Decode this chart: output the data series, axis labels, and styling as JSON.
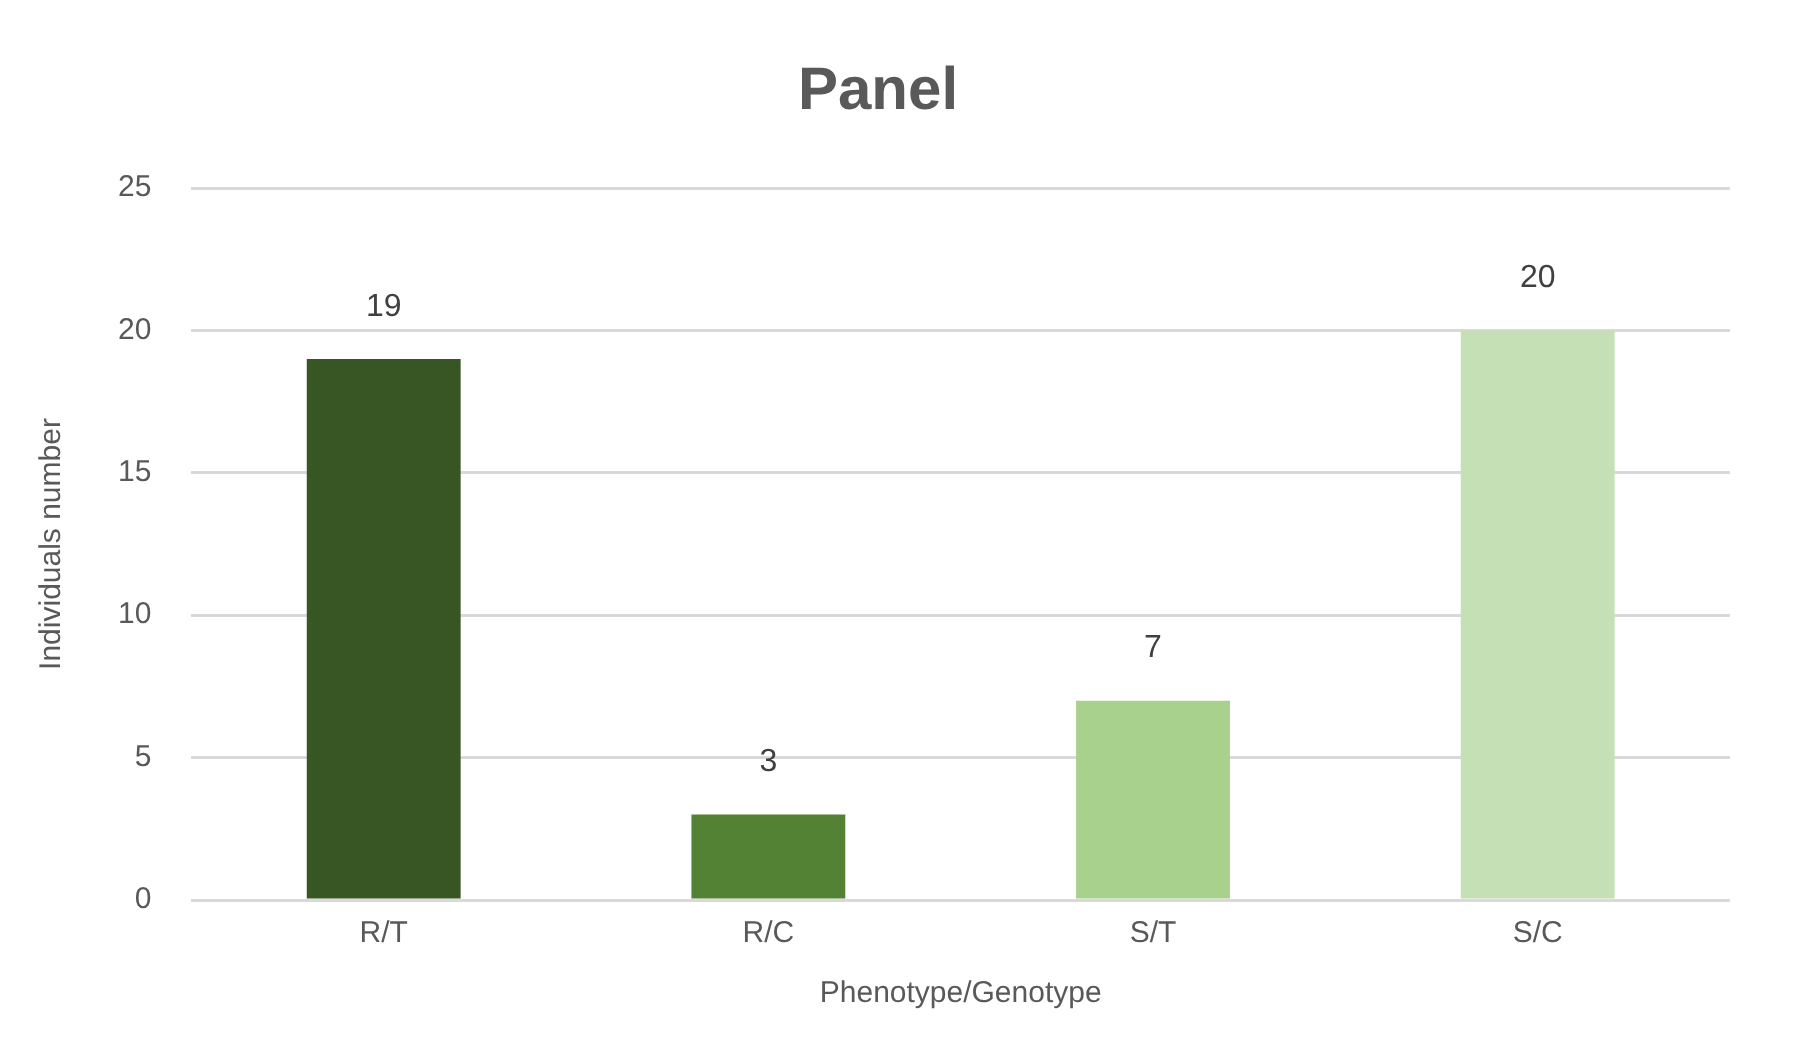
{
  "chart_data": {
    "type": "bar",
    "title": "Panel",
    "xlabel": "Phenotype/Genotype",
    "ylabel": "Individuals number",
    "categories": [
      "R/T",
      "R/C",
      "S/T",
      "S/C"
    ],
    "values": [
      19,
      3,
      7,
      20
    ],
    "colors": [
      "#375623",
      "#548235",
      "#a9d18e",
      "#c5e0b4"
    ],
    "ylim": [
      0,
      25
    ],
    "yticks": [
      0,
      5,
      10,
      15,
      20,
      25
    ],
    "grid": "y",
    "data_labels": true
  }
}
